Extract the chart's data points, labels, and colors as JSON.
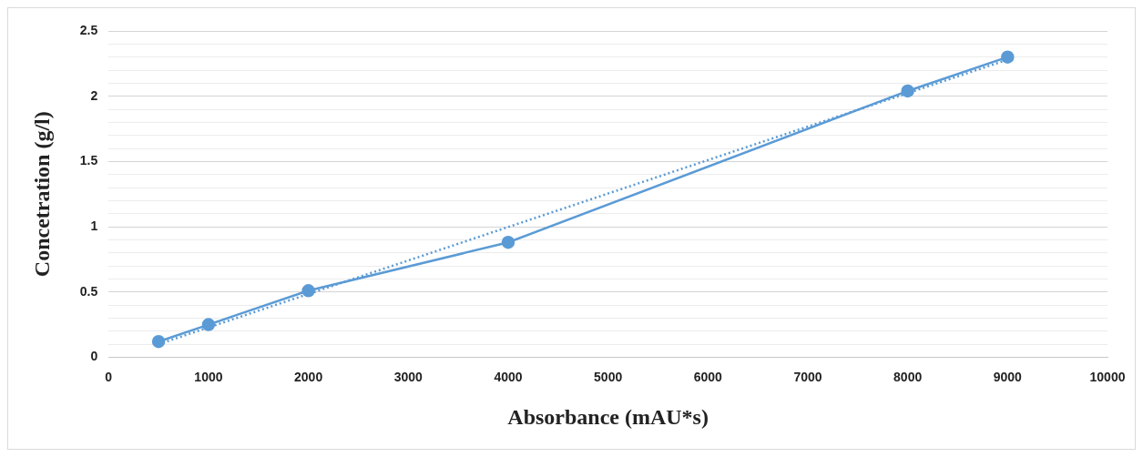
{
  "chart_data": {
    "type": "line",
    "xlabel": "Absorbance (mAU*s)",
    "ylabel": "Concetration (g/l)",
    "x": [
      500,
      1000,
      2000,
      4000,
      8000,
      9000
    ],
    "series": [
      {
        "color": "#5b9bd5",
        "values": [
          0.12,
          0.25,
          0.51,
          0.88,
          2.04,
          2.3
        ],
        "marker": "circle",
        "line_style": "solid"
      },
      {
        "type": "line",
        "x": [
          500,
          9000
        ],
        "color": "#5b9bd5",
        "values": [
          0.1,
          2.28
        ],
        "marker": "none",
        "line_style": "dotted"
      }
    ],
    "xlim": [
      0,
      10000
    ],
    "xticks": [
      0,
      1000,
      2000,
      3000,
      4000,
      5000,
      6000,
      7000,
      8000,
      9000,
      10000
    ],
    "ylim": [
      0,
      2.5
    ],
    "yticks": [
      0,
      {
        "value": 0.1,
        "label": null
      },
      {
        "value": 0.2,
        "label": null
      },
      {
        "value": 0.3,
        "label": null
      },
      {
        "value": 0.4,
        "label": null
      },
      0.5,
      {
        "value": 0.6,
        "label": null
      },
      {
        "value": 0.7,
        "label": null
      },
      {
        "value": 0.8,
        "label": null
      },
      {
        "value": 0.9,
        "label": null
      },
      1,
      {
        "value": 1.1,
        "label": null
      },
      {
        "value": 1.2,
        "label": null
      },
      {
        "value": 1.3,
        "label": null
      },
      {
        "value": 1.4,
        "label": null
      },
      1.5,
      {
        "value": 1.6,
        "label": null
      },
      {
        "value": 1.7,
        "label": null
      },
      {
        "value": 1.8,
        "label": null
      },
      {
        "value": 1.9,
        "label": null
      },
      2,
      {
        "value": 2.1,
        "label": null
      },
      {
        "value": 2.2,
        "label": null
      },
      {
        "value": 2.3,
        "label": null
      },
      {
        "value": 2.4,
        "label": null
      },
      2.5
    ],
    "grid": "y",
    "legend": false
  }
}
